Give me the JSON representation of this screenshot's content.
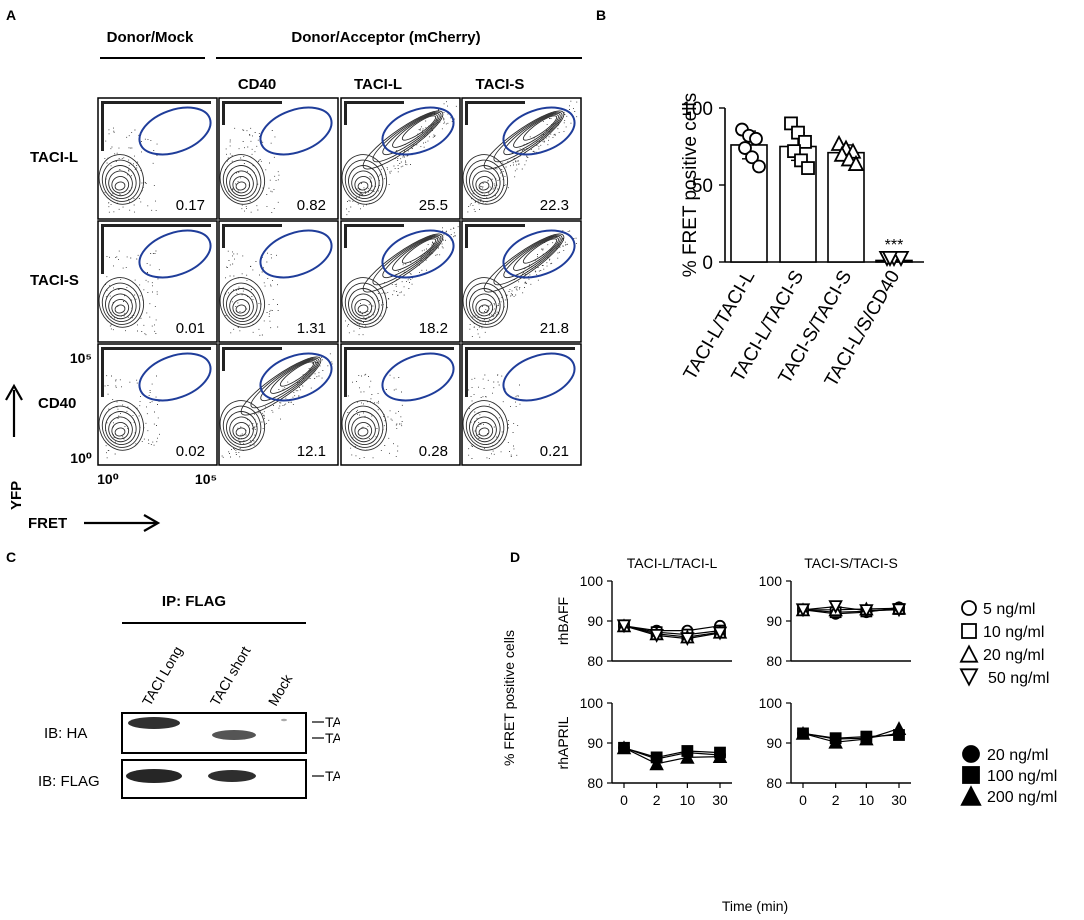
{
  "figure_panels": {
    "A": {
      "label": "A",
      "group_mock": "Donor/Mock",
      "group_acceptor": "Donor/Acceptor (mCherry)",
      "col_headers": [
        "CD40",
        "TACI-L",
        "TACI-S"
      ],
      "row_labels": [
        "TACI-L",
        "TACI-S",
        "CD40"
      ],
      "y_tick_top": "10⁵",
      "y_tick_bottom": "10⁰",
      "x_tick_left": "10⁰",
      "x_tick_right": "10⁵",
      "y_axis_label": "YFP",
      "x_axis_label": "FRET",
      "values": [
        [
          "0.17",
          "0.82",
          "25.5",
          "22.3"
        ],
        [
          "0.01",
          "1.31",
          "18.2",
          "21.8"
        ],
        [
          "0.02",
          "12.1",
          "0.28",
          "0.21"
        ]
      ]
    },
    "B": {
      "label": "B",
      "significance": "***"
    },
    "C": {
      "label": "C",
      "ip_label": "IP: FLAG",
      "lanes": [
        "TACI Long",
        "TACI short",
        "Mock"
      ],
      "ib_labels": [
        "IB: HA",
        "IB: FLAG"
      ],
      "band_labels_ha": [
        "TACI-L",
        "TACI-S"
      ],
      "band_labels_flag": [
        "TACI-L"
      ]
    },
    "D": {
      "label": "D"
    }
  },
  "chart_data": [
    {
      "type": "bar",
      "title": "",
      "ylabel": "% FRET positive cells",
      "xlabel": "",
      "ylim": [
        0,
        100
      ],
      "yticks": [
        "0",
        "50",
        "100"
      ],
      "categories": [
        "TACI-L/TACI-L",
        "TACI-L/TACI-S",
        "TACI-S/TACI-S",
        "TACI-L/S/CD40"
      ],
      "values": [
        76,
        75,
        71,
        1
      ],
      "errors": [
        9,
        9,
        5,
        0
      ],
      "points": [
        [
          86,
          82,
          80,
          74,
          68,
          62
        ],
        [
          90,
          84,
          78,
          72,
          66,
          61
        ],
        [
          77,
          74,
          72,
          70,
          67,
          64
        ],
        [
          1,
          1,
          1,
          1
        ]
      ],
      "markers": [
        "circle",
        "square",
        "triangle-up",
        "triangle-down"
      ]
    },
    {
      "type": "line",
      "title": "TACI-L/TACI-L",
      "ylabel": "rhBAFF",
      "ylim": [
        80,
        100
      ],
      "yticks": [
        "80",
        "90",
        "100"
      ],
      "x": [
        0,
        2,
        10,
        30
      ],
      "series": [
        {
          "name": "5 ng/ml",
          "marker": "circle",
          "values": [
            88.8,
            87.6,
            87.6,
            88.8
          ]
        },
        {
          "name": "10 ng/ml",
          "marker": "square",
          "values": [
            88.8,
            87.2,
            86.6,
            87.6
          ]
        },
        {
          "name": "20 ng/ml",
          "marker": "triangle-up",
          "values": [
            88.8,
            86.8,
            86.0,
            87.2
          ]
        },
        {
          "name": "50 ng/ml",
          "marker": "triangle-down",
          "values": [
            88.8,
            86.4,
            85.6,
            87.0
          ]
        }
      ]
    },
    {
      "type": "line",
      "title": "TACI-S/TACI-S",
      "ylabel": "",
      "ylim": [
        80,
        100
      ],
      "yticks": [
        "80",
        "90",
        "100"
      ],
      "x": [
        0,
        2,
        10,
        30
      ],
      "series": [
        {
          "name": "5 ng/ml",
          "marker": "circle",
          "values": [
            92.8,
            91.8,
            92.2,
            93.4
          ]
        },
        {
          "name": "10 ng/ml",
          "marker": "square",
          "values": [
            92.8,
            92.2,
            92.4,
            93.0
          ]
        },
        {
          "name": "20 ng/ml",
          "marker": "triangle-up",
          "values": [
            92.8,
            92.8,
            93.0,
            93.2
          ]
        },
        {
          "name": "50 ng/ml",
          "marker": "triangle-down",
          "values": [
            92.8,
            93.6,
            92.6,
            92.8
          ]
        }
      ]
    },
    {
      "type": "line",
      "title": "",
      "ylabel": "rhAPRIL",
      "ylim": [
        80,
        100
      ],
      "yticks": [
        "80",
        "90",
        "100"
      ],
      "x": [
        0,
        2,
        10,
        30
      ],
      "series": [
        {
          "name": "20 ng/ml",
          "marker": "circle-filled",
          "values": [
            88.8,
            86.0,
            87.6,
            87.0
          ]
        },
        {
          "name": "100 ng/ml",
          "marker": "square-filled",
          "values": [
            88.8,
            86.4,
            88.0,
            87.6
          ]
        },
        {
          "name": "200 ng/ml",
          "marker": "triangle-filled",
          "values": [
            88.8,
            84.8,
            86.4,
            86.6
          ]
        }
      ]
    },
    {
      "type": "line",
      "title": "",
      "ylabel": "",
      "ylim": [
        80,
        100
      ],
      "yticks": [
        "80",
        "90",
        "100"
      ],
      "x": [
        0,
        2,
        10,
        30
      ],
      "series": [
        {
          "name": "20 ng/ml",
          "marker": "circle-filled",
          "values": [
            92.4,
            91.0,
            91.2,
            92.4
          ]
        },
        {
          "name": "100 ng/ml",
          "marker": "square-filled",
          "values": [
            92.4,
            91.2,
            91.6,
            92.0
          ]
        },
        {
          "name": "200 ng/ml",
          "marker": "triangle-filled",
          "values": [
            92.4,
            90.2,
            91.0,
            93.6
          ]
        }
      ]
    }
  ],
  "panel_d_shared": {
    "ylabel": "% FRET positive cells",
    "xlabel": "Time (min)",
    "xtick_labels": [
      "0",
      "2",
      "10",
      "30"
    ],
    "legend_baff": [
      "5 ng/ml",
      "10 ng/ml",
      "20 ng/ml",
      "50 ng/ml"
    ],
    "legend_april": [
      "20 ng/ml",
      "100 ng/ml",
      "200 ng/ml"
    ]
  },
  "colors": {
    "gate": "#1f3d9a",
    "ink": "#000000",
    "contour": "#2a2a2a"
  }
}
